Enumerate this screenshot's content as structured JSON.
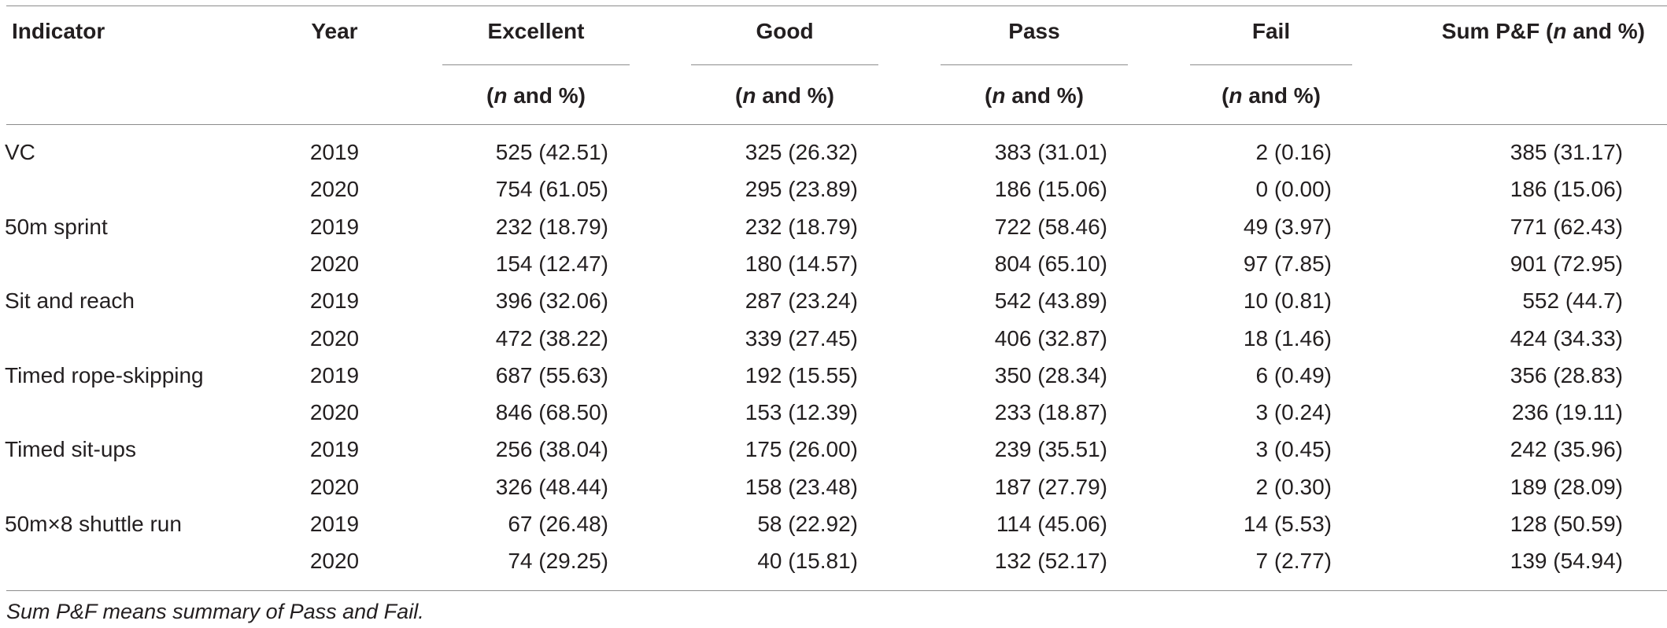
{
  "columns": {
    "indicator": "Indicator",
    "year": "Year",
    "excellent": "Excellent",
    "good": "Good",
    "pass": "Pass",
    "fail": "Fail",
    "sum_pre": "Sum P&F (",
    "n_letter": "n",
    "sum_post": " and %)",
    "sub_pre": "(",
    "sub_post": " and %)"
  },
  "rows": [
    {
      "indicator": "VC",
      "year": "2019",
      "excellent": "525 (42.51)",
      "good": "325 (26.32)",
      "pass": "383 (31.01)",
      "fail": "2 (0.16)",
      "sum": "385 (31.17)"
    },
    {
      "indicator": "",
      "year": "2020",
      "excellent": "754 (61.05)",
      "good": "295 (23.89)",
      "pass": "186 (15.06)",
      "fail": "0 (0.00)",
      "sum": "186 (15.06)"
    },
    {
      "indicator": "50m sprint",
      "year": "2019",
      "excellent": "232 (18.79)",
      "good": "232 (18.79)",
      "pass": "722 (58.46)",
      "fail": "49 (3.97)",
      "sum": "771 (62.43)"
    },
    {
      "indicator": "",
      "year": "2020",
      "excellent": "154 (12.47)",
      "good": "180 (14.57)",
      "pass": "804 (65.10)",
      "fail": "97 (7.85)",
      "sum": "901 (72.95)"
    },
    {
      "indicator": "Sit and reach",
      "year": "2019",
      "excellent": "396 (32.06)",
      "good": "287 (23.24)",
      "pass": "542 (43.89)",
      "fail": "10 (0.81)",
      "sum": "552 (44.7)"
    },
    {
      "indicator": "",
      "year": "2020",
      "excellent": "472 (38.22)",
      "good": "339 (27.45)",
      "pass": "406 (32.87)",
      "fail": "18 (1.46)",
      "sum": "424 (34.33)"
    },
    {
      "indicator": "Timed rope-skipping",
      "year": "2019",
      "excellent": "687 (55.63)",
      "good": "192 (15.55)",
      "pass": "350 (28.34)",
      "fail": "6 (0.49)",
      "sum": "356 (28.83)"
    },
    {
      "indicator": "",
      "year": "2020",
      "excellent": "846 (68.50)",
      "good": "153 (12.39)",
      "pass": "233 (18.87)",
      "fail": "3 (0.24)",
      "sum": "236 (19.11)"
    },
    {
      "indicator": "Timed sit-ups",
      "year": "2019",
      "excellent": "256 (38.04)",
      "good": "175 (26.00)",
      "pass": "239 (35.51)",
      "fail": "3 (0.45)",
      "sum": "242 (35.96)"
    },
    {
      "indicator": "",
      "year": "2020",
      "excellent": "326 (48.44)",
      "good": "158 (23.48)",
      "pass": "187 (27.79)",
      "fail": "2 (0.30)",
      "sum": "189 (28.09)"
    },
    {
      "indicator": "50m×8 shuttle run",
      "year": "2019",
      "excellent": "67 (26.48)",
      "good": "58 (22.92)",
      "pass": "114 (45.06)",
      "fail": "14 (5.53)",
      "sum": "128 (50.59)"
    },
    {
      "indicator": "",
      "year": "2020",
      "excellent": "74 (29.25)",
      "good": "40 (15.81)",
      "pass": "132 (52.17)",
      "fail": "7 (2.77)",
      "sum": "139 (54.94)"
    }
  ],
  "footnote": "Sum P&F means summary of Pass and Fail."
}
